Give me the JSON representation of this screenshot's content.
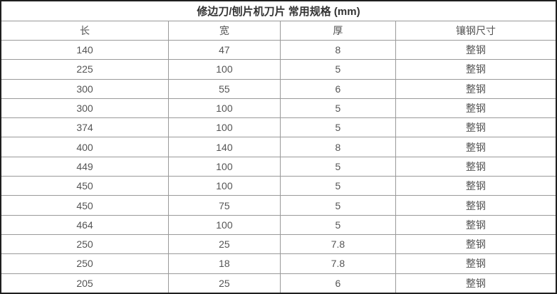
{
  "table": {
    "title": "修边刀/刨片机刀片 常用规格 (mm)",
    "columns": [
      "长",
      "宽",
      "厚",
      "镶钢尺寸"
    ],
    "rows": [
      [
        "140",
        "47",
        "8",
        "整钢"
      ],
      [
        "225",
        "100",
        "5",
        "整钢"
      ],
      [
        "300",
        "55",
        "6",
        "整钢"
      ],
      [
        "300",
        "100",
        "5",
        "整钢"
      ],
      [
        "374",
        "100",
        "5",
        "整钢"
      ],
      [
        "400",
        "140",
        "8",
        "整钢"
      ],
      [
        "449",
        "100",
        "5",
        "整钢"
      ],
      [
        "450",
        "100",
        "5",
        "整钢"
      ],
      [
        "450",
        "75",
        "5",
        "整钢"
      ],
      [
        "464",
        "100",
        "5",
        "整钢"
      ],
      [
        "250",
        "25",
        "7.8",
        "整钢"
      ],
      [
        "250",
        "18",
        "7.8",
        "整钢"
      ],
      [
        "205",
        "25",
        "6",
        "整钢"
      ]
    ],
    "colors": {
      "outer_border": "#1f1f1f",
      "inner_border": "#9a9a9a",
      "title_text": "#333333",
      "cell_text": "#555555",
      "background": "#ffffff"
    }
  }
}
